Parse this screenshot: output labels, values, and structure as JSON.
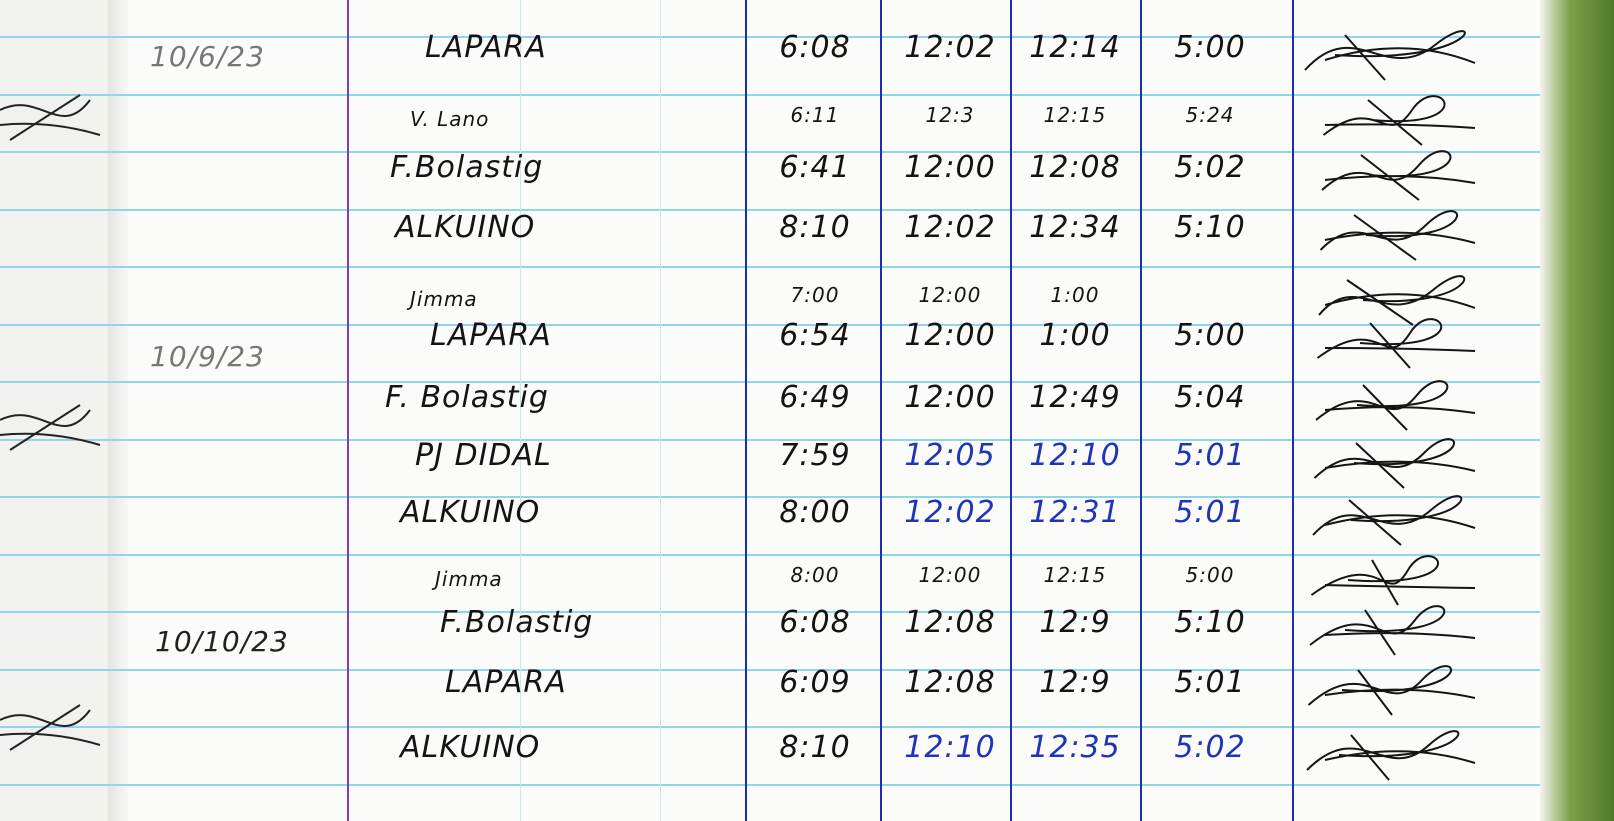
{
  "logbook": {
    "dates": [
      {
        "label": "10/6/23",
        "faint": true
      },
      {
        "label": "10/9/23",
        "faint": true
      },
      {
        "label": "10/10/23",
        "faint": false
      }
    ],
    "rows": [
      {
        "name": "LAPARA",
        "time_in": "6:08",
        "lunch_out": "12:02",
        "lunch_in": "12:14",
        "time_out": "5:00",
        "ink": "black"
      },
      {
        "name": "V. Lano",
        "time_in": "6:11",
        "lunch_out": "12:3",
        "lunch_in": "12:15",
        "time_out": "5:24",
        "ink": "black",
        "small": true
      },
      {
        "name": "F.Bolastig",
        "time_in": "6:41",
        "lunch_out": "12:00",
        "lunch_in": "12:08",
        "time_out": "5:02",
        "ink": "black"
      },
      {
        "name": "ALKUINO",
        "time_in": "8:10",
        "lunch_out": "12:02",
        "lunch_in": "12:34",
        "time_out": "5:10",
        "ink": "black"
      },
      {
        "name": "Jimma",
        "time_in": "7:00",
        "lunch_out": "12:00",
        "lunch_in": "1:00",
        "time_out": "",
        "ink": "black",
        "small": true
      },
      {
        "name": "LAPARA",
        "time_in": "6:54",
        "lunch_out": "12:00",
        "lunch_in": "1:00",
        "time_out": "5:00",
        "ink": "black"
      },
      {
        "name": "F. Bolastig",
        "time_in": "6:49",
        "lunch_out": "12:00",
        "lunch_in": "12:49",
        "time_out": "5:04",
        "ink": "black"
      },
      {
        "name": "PJ DIDAL",
        "time_in": "7:59",
        "lunch_out": "12:05",
        "lunch_in": "12:10",
        "time_out": "5:01",
        "ink": "blue"
      },
      {
        "name": "ALKUINO",
        "time_in": "8:00",
        "lunch_out": "12:02",
        "lunch_in": "12:31",
        "time_out": "5:01",
        "ink": "blue"
      },
      {
        "name": "Jimma",
        "time_in": "8:00",
        "lunch_out": "12:00",
        "lunch_in": "12:15",
        "time_out": "5:00",
        "ink": "black",
        "small": true
      },
      {
        "name": "F.Bolastig",
        "time_in": "6:08",
        "lunch_out": "12:08",
        "lunch_in": "12:9",
        "time_out": "5:10",
        "ink": "black"
      },
      {
        "name": "LAPARA",
        "time_in": "6:09",
        "lunch_out": "12:08",
        "lunch_in": "12:9",
        "time_out": "5:01",
        "ink": "black"
      },
      {
        "name": "ALKUINO",
        "time_in": "8:10",
        "lunch_out": "12:10",
        "lunch_in": "12:35",
        "time_out": "5:02",
        "ink": "blue"
      }
    ],
    "colors": {
      "ruled_line": "#8fd6e8",
      "column_line": "#1c2fb0",
      "blue_ink": "#1f34b8",
      "black_ink": "#141414",
      "cover_edge": "#4e7a2c"
    }
  }
}
